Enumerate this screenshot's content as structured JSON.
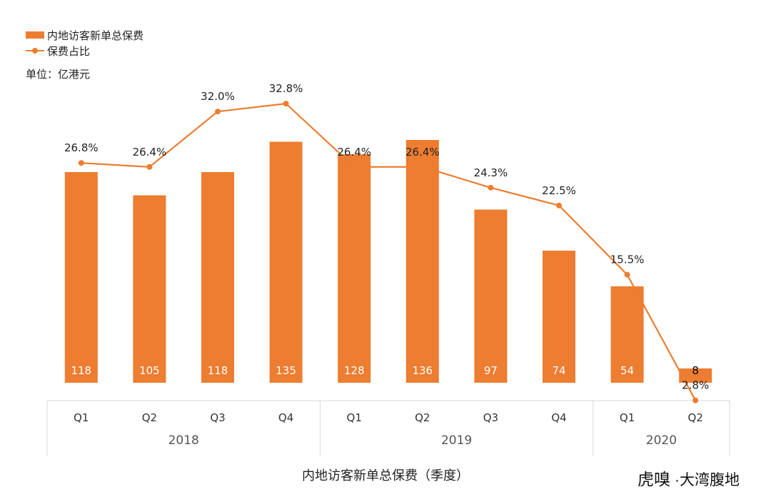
{
  "chart_data": {
    "type": "bar",
    "title": "",
    "xlabel": "内地访客新单总保费（季度）",
    "ylabel": "",
    "unit_label": "单位：亿港元",
    "categories": [
      "Q1",
      "Q2",
      "Q3",
      "Q4",
      "Q1",
      "Q2",
      "Q3",
      "Q4",
      "Q1",
      "Q2"
    ],
    "groups": [
      {
        "label": "2018",
        "span": 4
      },
      {
        "label": "2019",
        "span": 4
      },
      {
        "label": "2020",
        "span": 2
      }
    ],
    "series": [
      {
        "name": "内地访客新单总保费",
        "type": "bar",
        "values": [
          118,
          105,
          118,
          135,
          128,
          136,
          97,
          74,
          54,
          8
        ],
        "labels": [
          "118",
          "105",
          "118",
          "135",
          "128",
          "136",
          "97",
          "74",
          "54",
          "8"
        ]
      },
      {
        "name": "保费占比",
        "type": "line",
        "values": [
          26.8,
          26.4,
          32.0,
          32.8,
          26.4,
          26.4,
          24.3,
          22.5,
          15.5,
          2.8
        ],
        "labels": [
          "26.8%",
          "26.4%",
          "32.0%",
          "32.8%",
          "26.4%",
          "26.4%",
          "24.3%",
          "22.5%",
          "15.5%",
          "2.8%"
        ]
      }
    ],
    "ylim_bar": [
      0,
      150
    ],
    "ylim_line": [
      0,
      35
    ],
    "legend_position": "top-left",
    "grid": false,
    "colors": {
      "bar": "#ed7d31",
      "line": "#ed7d31",
      "axis": "#d9d9d9",
      "text": "#222222",
      "bar_label": "#ffffff"
    }
  },
  "legend": {
    "bar_label": "内地访客新单总保费",
    "line_label": "保费占比"
  },
  "watermark": {
    "brand": "虎嗅",
    "sub": "·大湾腹地"
  }
}
